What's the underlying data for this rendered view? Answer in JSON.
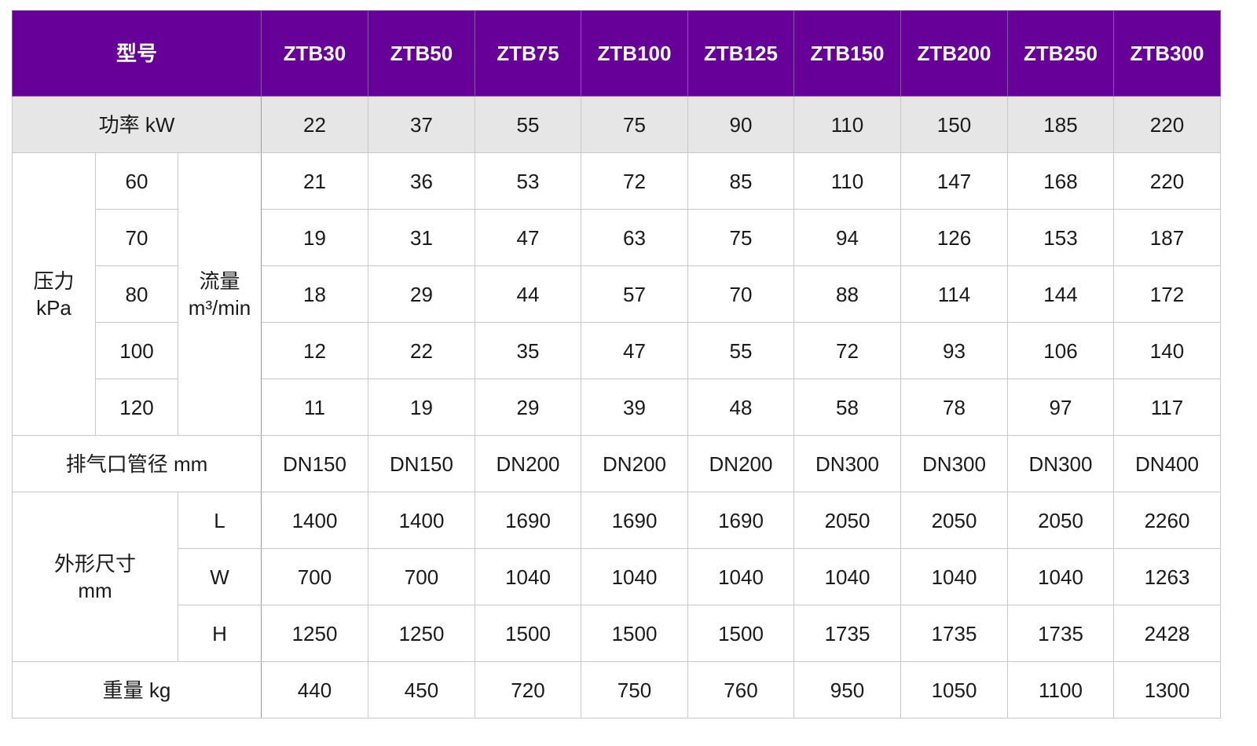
{
  "colors": {
    "header_bg": "#660099",
    "header_text": "#ffffff",
    "power_row_bg": "#e6e6e6"
  },
  "table": {
    "model_label": "型号",
    "models": [
      "ZTB30",
      "ZTB50",
      "ZTB75",
      "ZTB100",
      "ZTB125",
      "ZTB150",
      "ZTB200",
      "ZTB250",
      "ZTB300"
    ],
    "power": {
      "label": "功率 kW",
      "values": [
        "22",
        "37",
        "55",
        "75",
        "90",
        "110",
        "150",
        "185",
        "220"
      ]
    },
    "flow": {
      "pressure_label": "压力\nkPa",
      "flow_label": "流量\nm³/min",
      "rows": [
        {
          "pressure": "60",
          "values": [
            "21",
            "36",
            "53",
            "72",
            "85",
            "110",
            "147",
            "168",
            "220"
          ]
        },
        {
          "pressure": "70",
          "values": [
            "19",
            "31",
            "47",
            "63",
            "75",
            "94",
            "126",
            "153",
            "187"
          ]
        },
        {
          "pressure": "80",
          "values": [
            "18",
            "29",
            "44",
            "57",
            "70",
            "88",
            "114",
            "144",
            "172"
          ]
        },
        {
          "pressure": "100",
          "values": [
            "12",
            "22",
            "35",
            "47",
            "55",
            "72",
            "93",
            "106",
            "140"
          ]
        },
        {
          "pressure": "120",
          "values": [
            "11",
            "19",
            "29",
            "39",
            "48",
            "58",
            "78",
            "97",
            "117"
          ]
        }
      ]
    },
    "exhaust": {
      "label": "排气口管径 mm",
      "values": [
        "DN150",
        "DN150",
        "DN200",
        "DN200",
        "DN200",
        "DN300",
        "DN300",
        "DN300",
        "DN400"
      ]
    },
    "dimensions": {
      "label": "外形尺寸\nmm",
      "rows": [
        {
          "dim": "L",
          "values": [
            "1400",
            "1400",
            "1690",
            "1690",
            "1690",
            "2050",
            "2050",
            "2050",
            "2260"
          ]
        },
        {
          "dim": "W",
          "values": [
            "700",
            "700",
            "1040",
            "1040",
            "1040",
            "1040",
            "1040",
            "1040",
            "1263"
          ]
        },
        {
          "dim": "H",
          "values": [
            "1250",
            "1250",
            "1500",
            "1500",
            "1500",
            "1735",
            "1735",
            "1735",
            "2428"
          ]
        }
      ]
    },
    "weight": {
      "label": "重量 kg",
      "values": [
        "440",
        "450",
        "720",
        "750",
        "760",
        "950",
        "1050",
        "1100",
        "1300"
      ]
    }
  }
}
